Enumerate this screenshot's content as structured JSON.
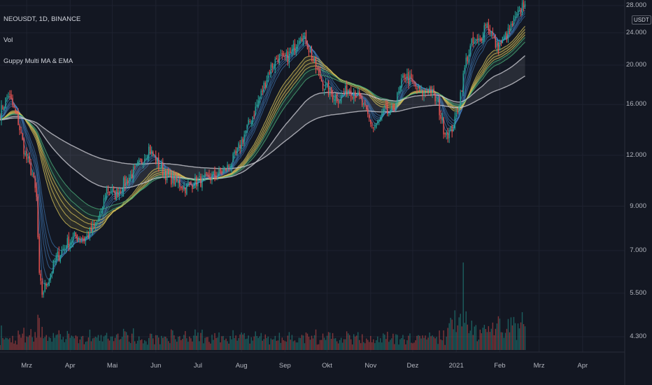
{
  "legend": {
    "symbol": "NEOUSDT, 1D, BINANCE",
    "vol": "Vol",
    "indicator": "Guppy Multi MA & EMA"
  },
  "currency_badge": "USDT",
  "colors": {
    "background": "#131722",
    "grid": "#1e2230",
    "candle_up": "#26a69a",
    "candle_down": "#ef5350",
    "ribbon_fast": "#4a90d9",
    "ribbon_mid_yellow": "#d8c35a",
    "ribbon_green": "#4caf7a",
    "ribbon_slow": "#c8c8d0"
  },
  "chart_data": {
    "type": "line",
    "title": "",
    "y_scale": "log",
    "ylim": [
      4.0,
      28.0
    ],
    "y_ticks": [
      {
        "value": 28,
        "label": "28.000"
      },
      {
        "value": 24,
        "label": "24.000"
      },
      {
        "value": 20,
        "label": "20.000"
      },
      {
        "value": 16,
        "label": "16.000"
      },
      {
        "value": 12,
        "label": "12.000"
      },
      {
        "value": 9,
        "label": "9.000"
      },
      {
        "value": 7,
        "label": "7.000"
      },
      {
        "value": 5.5,
        "label": "5.500"
      },
      {
        "value": 4.3,
        "label": "4.300"
      }
    ],
    "x_ticks": [
      {
        "day": 31,
        "label": "Mrz"
      },
      {
        "day": 62,
        "label": "Apr"
      },
      {
        "day": 92,
        "label": "Mai"
      },
      {
        "day": 123,
        "label": "Jun"
      },
      {
        "day": 153,
        "label": "Jul"
      },
      {
        "day": 184,
        "label": "Aug"
      },
      {
        "day": 215,
        "label": "Sep"
      },
      {
        "day": 245,
        "label": "Okt"
      },
      {
        "day": 276,
        "label": "Nov"
      },
      {
        "day": 306,
        "label": "Dez"
      },
      {
        "day": 337,
        "label": "2021"
      },
      {
        "day": 368,
        "label": "Feb"
      },
      {
        "day": 396,
        "label": "Mrz"
      },
      {
        "day": 427,
        "label": "Apr"
      }
    ],
    "x_range": [
      12,
      457
    ],
    "price_path": [
      [
        12,
        15.2
      ],
      [
        18,
        17.0
      ],
      [
        25,
        14.5
      ],
      [
        30,
        12.0
      ],
      [
        35,
        10.8
      ],
      [
        38,
        9.4
      ],
      [
        40,
        6.0
      ],
      [
        42,
        5.5
      ],
      [
        45,
        5.8
      ],
      [
        52,
        6.7
      ],
      [
        60,
        7.3
      ],
      [
        66,
        7.6
      ],
      [
        72,
        7.5
      ],
      [
        78,
        7.9
      ],
      [
        84,
        8.6
      ],
      [
        88,
        10.0
      ],
      [
        94,
        9.6
      ],
      [
        100,
        10.2
      ],
      [
        106,
        10.8
      ],
      [
        112,
        11.5
      ],
      [
        118,
        12.5
      ],
      [
        124,
        11.5
      ],
      [
        130,
        10.8
      ],
      [
        136,
        10.4
      ],
      [
        144,
        10.0
      ],
      [
        150,
        10.3
      ],
      [
        156,
        10.4
      ],
      [
        162,
        10.6
      ],
      [
        168,
        10.8
      ],
      [
        174,
        11.2
      ],
      [
        180,
        12.0
      ],
      [
        186,
        13.5
      ],
      [
        192,
        15.0
      ],
      [
        198,
        17.0
      ],
      [
        204,
        19.5
      ],
      [
        210,
        21.0
      ],
      [
        214,
        20.5
      ],
      [
        220,
        21.5
      ],
      [
        226,
        24.0
      ],
      [
        230,
        23.0
      ],
      [
        236,
        20.0
      ],
      [
        242,
        18.0
      ],
      [
        248,
        17.0
      ],
      [
        254,
        16.5
      ],
      [
        260,
        17.5
      ],
      [
        266,
        17.0
      ],
      [
        272,
        15.5
      ],
      [
        278,
        14.0
      ],
      [
        282,
        14.5
      ],
      [
        286,
        15.5
      ],
      [
        290,
        15.0
      ],
      [
        296,
        17.0
      ],
      [
        300,
        19.0
      ],
      [
        306,
        18.0
      ],
      [
        312,
        17.0
      ],
      [
        318,
        17.5
      ],
      [
        324,
        16.0
      ],
      [
        328,
        14.0
      ],
      [
        332,
        13.5
      ],
      [
        336,
        14.5
      ],
      [
        340,
        17.0
      ],
      [
        344,
        20.5
      ],
      [
        348,
        22.5
      ],
      [
        354,
        23.0
      ],
      [
        358,
        25.5
      ],
      [
        362,
        24.0
      ],
      [
        366,
        22.0
      ],
      [
        370,
        23.0
      ],
      [
        374,
        24.0
      ],
      [
        378,
        25.5
      ],
      [
        382,
        27.0
      ],
      [
        386,
        29.0
      ]
    ],
    "candles_end_day": 386,
    "volume_max_day": 342,
    "ema_periods": [
      3,
      5,
      8,
      10,
      12,
      15,
      30,
      35,
      40,
      45,
      50,
      60,
      100,
      200
    ]
  }
}
